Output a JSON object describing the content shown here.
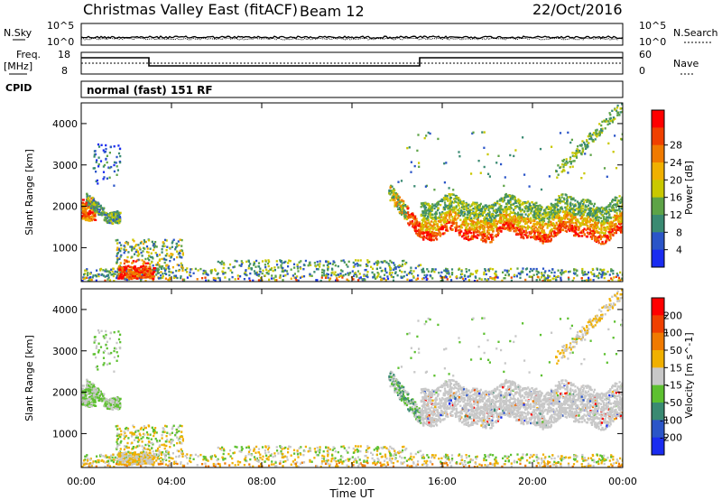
{
  "header": {
    "title": "Christmas Valley East (fitACF)",
    "beam": "Beam 12",
    "date": "22/Oct/2016"
  },
  "top_panels": {
    "nsky_label": "N.Sky",
    "nsearch_label": "N.Search",
    "noise_ticks": [
      "10^5",
      "10^0"
    ],
    "freq_label_line1": "Freq.",
    "freq_label_line2": "[MHz]",
    "freq_ticks": [
      "18",
      "8"
    ],
    "nave_label": "Nave",
    "nave_ticks": [
      "60",
      "0"
    ],
    "cpid_label": "CPID",
    "cpid_text": "normal (fast) 151 RF"
  },
  "chart_data": [
    {
      "type": "heatmap",
      "name": "power",
      "ylabel": "Slant Range [km]",
      "xlabel": "",
      "x_ticks": [
        "00:00",
        "04:00",
        "08:00",
        "12:00",
        "16:00",
        "20:00",
        "00:00"
      ],
      "y_ticks": [
        1000,
        2000,
        3000,
        4000
      ],
      "xlim_hours": [
        0,
        24
      ],
      "ylim_km": [
        180,
        4500
      ],
      "colorbar": {
        "label": "Power [dB]",
        "ticks": [
          "4",
          "8",
          "12",
          "16",
          "20",
          "24",
          "28"
        ],
        "colors": [
          "#1a2cf0",
          "#2b55c8",
          "#3a8a72",
          "#5da347",
          "#c9c800",
          "#f0b000",
          "#f07a00",
          "#f04000",
          "#ff0000"
        ]
      }
    },
    {
      "type": "heatmap",
      "name": "velocity",
      "ylabel": "Slant Range [km]",
      "xlabel": "Time UT",
      "x_ticks": [
        "00:00",
        "04:00",
        "08:00",
        "12:00",
        "16:00",
        "20:00",
        "00:00"
      ],
      "y_ticks": [
        1000,
        2000,
        3000,
        4000
      ],
      "xlim_hours": [
        0,
        24
      ],
      "ylim_km": [
        180,
        4500
      ],
      "colorbar": {
        "label": "Velocity [m s^-1]",
        "ticks": [
          "200",
          "100",
          "50",
          "15",
          "-15",
          "-50",
          "-100",
          "-200"
        ],
        "colors": [
          "#1a2cf0",
          "#2b55c8",
          "#3a8a72",
          "#5dc030",
          "#c8c8c8",
          "#f0b000",
          "#f07a00",
          "#f04000",
          "#ff0000"
        ]
      }
    }
  ]
}
